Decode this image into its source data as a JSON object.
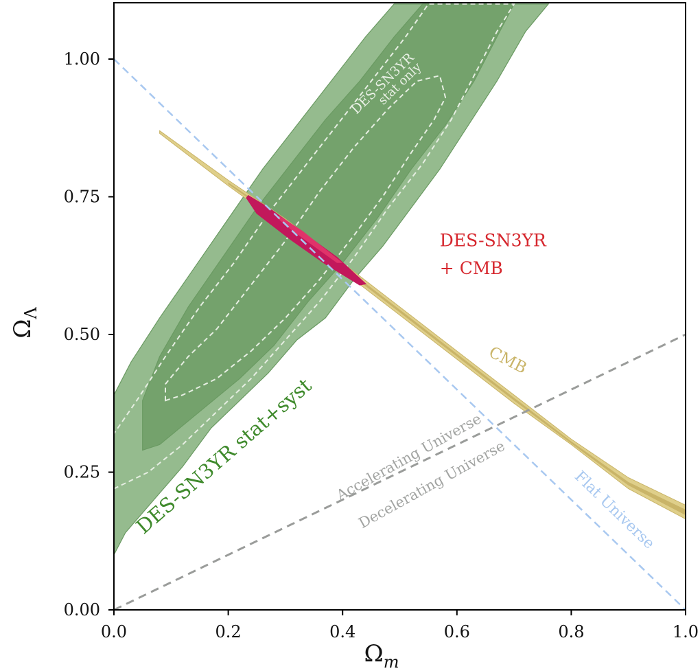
{
  "chart_data": {
    "type": "contour",
    "xlabel": "Ω",
    "xlabel_sub": "m",
    "ylabel": "Ω",
    "ylabel_sub": "Λ",
    "xlim": [
      0.0,
      1.0
    ],
    "ylim": [
      0.0,
      1.1
    ],
    "xticks": [
      0.0,
      0.2,
      0.4,
      0.6,
      0.8,
      1.0
    ],
    "xtick_labels": [
      "0.0",
      "0.2",
      "0.4",
      "0.6",
      "0.8",
      "1.0"
    ],
    "yticks": [
      0.0,
      0.25,
      0.5,
      0.75,
      1.0
    ],
    "ytick_labels": [
      "0.00",
      "0.25",
      "0.50",
      "0.75",
      "1.00"
    ],
    "grid": false,
    "colors": {
      "sn_outer": "#95bb8e",
      "sn_inner": "#74a26c",
      "sn_outline": "#6a9a62",
      "stat_only": "#e6eee2",
      "cmb_outer": "#dfcf8a",
      "cmb_inner": "#c9b468",
      "combined_outer": "#c2185b",
      "combined_inner": "#e0336a",
      "flat_line": "#a8c8f0",
      "accel_line": "#9a9c9a",
      "sn_label": "#3f8a2c",
      "stat_label": "#e8efe4",
      "combined_label": "#d6272e",
      "cmb_label": "#c9b468",
      "accel_label": "#a2a4a2",
      "flat_label": "#a8c8f0"
    },
    "series": [
      {
        "name": "DES-SN3YR stat+syst",
        "kind": "filled-contour",
        "level": "outer",
        "points": [
          [
            0.0,
            0.1
          ],
          [
            0.02,
            0.14
          ],
          [
            0.07,
            0.2
          ],
          [
            0.12,
            0.26
          ],
          [
            0.17,
            0.33
          ],
          [
            0.22,
            0.38
          ],
          [
            0.27,
            0.43
          ],
          [
            0.32,
            0.49
          ],
          [
            0.37,
            0.53
          ],
          [
            0.42,
            0.6
          ],
          [
            0.47,
            0.66
          ],
          [
            0.52,
            0.73
          ],
          [
            0.57,
            0.8
          ],
          [
            0.62,
            0.88
          ],
          [
            0.67,
            0.96
          ],
          [
            0.72,
            1.05
          ],
          [
            0.76,
            1.1
          ],
          [
            0.49,
            1.1
          ],
          [
            0.44,
            1.04
          ],
          [
            0.38,
            0.96
          ],
          [
            0.32,
            0.88
          ],
          [
            0.26,
            0.8
          ],
          [
            0.2,
            0.71
          ],
          [
            0.14,
            0.62
          ],
          [
            0.08,
            0.53
          ],
          [
            0.03,
            0.45
          ],
          [
            0.0,
            0.39
          ]
        ]
      },
      {
        "name": "DES-SN3YR stat+syst",
        "kind": "filled-contour",
        "level": "inner",
        "points": [
          [
            0.05,
            0.29
          ],
          [
            0.08,
            0.3
          ],
          [
            0.15,
            0.36
          ],
          [
            0.22,
            0.42
          ],
          [
            0.28,
            0.48
          ],
          [
            0.34,
            0.56
          ],
          [
            0.4,
            0.63
          ],
          [
            0.46,
            0.71
          ],
          [
            0.52,
            0.8
          ],
          [
            0.58,
            0.88
          ],
          [
            0.63,
            0.96
          ],
          [
            0.67,
            1.04
          ],
          [
            0.7,
            1.1
          ],
          [
            0.54,
            1.1
          ],
          [
            0.49,
            1.04
          ],
          [
            0.43,
            0.96
          ],
          [
            0.37,
            0.89
          ],
          [
            0.31,
            0.81
          ],
          [
            0.25,
            0.73
          ],
          [
            0.19,
            0.64
          ],
          [
            0.13,
            0.55
          ],
          [
            0.08,
            0.46
          ],
          [
            0.05,
            0.38
          ],
          [
            0.05,
            0.31
          ]
        ]
      },
      {
        "name": "DES-SN3YR stat only",
        "kind": "dashed-contour",
        "level": "outer",
        "points": [
          [
            0.0,
            0.22
          ],
          [
            0.06,
            0.25
          ],
          [
            0.12,
            0.3
          ],
          [
            0.18,
            0.36
          ],
          [
            0.24,
            0.42
          ],
          [
            0.3,
            0.49
          ],
          [
            0.36,
            0.56
          ],
          [
            0.42,
            0.64
          ],
          [
            0.48,
            0.73
          ],
          [
            0.54,
            0.81
          ],
          [
            0.59,
            0.89
          ],
          [
            0.63,
            0.97
          ],
          [
            0.67,
            1.05
          ],
          [
            0.7,
            1.1
          ],
          [
            0.55,
            1.1
          ],
          [
            0.51,
            1.04
          ],
          [
            0.45,
            0.96
          ],
          [
            0.39,
            0.88
          ],
          [
            0.33,
            0.8
          ],
          [
            0.27,
            0.72
          ],
          [
            0.21,
            0.63
          ],
          [
            0.15,
            0.55
          ],
          [
            0.09,
            0.46
          ],
          [
            0.04,
            0.38
          ],
          [
            0.0,
            0.32
          ]
        ]
      },
      {
        "name": "DES-SN3YR stat only",
        "kind": "dashed-contour",
        "level": "inner",
        "points": [
          [
            0.09,
            0.38
          ],
          [
            0.12,
            0.39
          ],
          [
            0.18,
            0.42
          ],
          [
            0.24,
            0.47
          ],
          [
            0.3,
            0.53
          ],
          [
            0.36,
            0.6
          ],
          [
            0.42,
            0.68
          ],
          [
            0.47,
            0.75
          ],
          [
            0.52,
            0.83
          ],
          [
            0.56,
            0.89
          ],
          [
            0.58,
            0.93
          ],
          [
            0.57,
            0.97
          ],
          [
            0.53,
            0.96
          ],
          [
            0.48,
            0.91
          ],
          [
            0.42,
            0.84
          ],
          [
            0.36,
            0.76
          ],
          [
            0.3,
            0.67
          ],
          [
            0.24,
            0.59
          ],
          [
            0.18,
            0.51
          ],
          [
            0.13,
            0.46
          ],
          [
            0.09,
            0.41
          ]
        ]
      },
      {
        "name": "CMB",
        "kind": "filled-band",
        "level": "outer",
        "points": [
          [
            0.08,
            0.87
          ],
          [
            0.2,
            0.78
          ],
          [
            0.3,
            0.71
          ],
          [
            0.4,
            0.63
          ],
          [
            0.5,
            0.55
          ],
          [
            0.6,
            0.47
          ],
          [
            0.7,
            0.39
          ],
          [
            0.8,
            0.31
          ],
          [
            0.9,
            0.24
          ],
          [
            1.0,
            0.19
          ],
          [
            1.0,
            0.165
          ],
          [
            0.9,
            0.22
          ],
          [
            0.8,
            0.3
          ],
          [
            0.7,
            0.375
          ],
          [
            0.6,
            0.455
          ],
          [
            0.5,
            0.535
          ],
          [
            0.4,
            0.615
          ],
          [
            0.3,
            0.695
          ],
          [
            0.2,
            0.77
          ],
          [
            0.08,
            0.865
          ]
        ]
      },
      {
        "name": "CMB",
        "kind": "filled-band",
        "level": "inner",
        "points": [
          [
            0.2,
            0.776
          ],
          [
            0.3,
            0.705
          ],
          [
            0.4,
            0.625
          ],
          [
            0.5,
            0.545
          ],
          [
            0.6,
            0.465
          ],
          [
            0.7,
            0.385
          ],
          [
            0.8,
            0.306
          ],
          [
            0.9,
            0.232
          ],
          [
            1.0,
            0.182
          ],
          [
            1.0,
            0.172
          ],
          [
            0.9,
            0.226
          ],
          [
            0.8,
            0.302
          ],
          [
            0.7,
            0.38
          ],
          [
            0.6,
            0.46
          ],
          [
            0.5,
            0.54
          ],
          [
            0.4,
            0.62
          ],
          [
            0.3,
            0.7
          ],
          [
            0.2,
            0.773
          ]
        ]
      },
      {
        "name": "DES-SN3YR + CMB",
        "kind": "filled-contour",
        "level": "outer",
        "points": [
          [
            0.235,
            0.752
          ],
          [
            0.27,
            0.73
          ],
          [
            0.33,
            0.685
          ],
          [
            0.39,
            0.64
          ],
          [
            0.44,
            0.592
          ],
          [
            0.43,
            0.59
          ],
          [
            0.37,
            0.628
          ],
          [
            0.31,
            0.672
          ],
          [
            0.25,
            0.72
          ],
          [
            0.232,
            0.748
          ]
        ]
      },
      {
        "name": "DES-SN3YR + CMB",
        "kind": "filled-contour",
        "level": "inner",
        "points": [
          [
            0.29,
            0.715
          ],
          [
            0.33,
            0.688
          ],
          [
            0.37,
            0.655
          ],
          [
            0.4,
            0.63
          ],
          [
            0.39,
            0.63
          ],
          [
            0.35,
            0.66
          ],
          [
            0.31,
            0.69
          ],
          [
            0.285,
            0.712
          ]
        ]
      },
      {
        "name": "Flat Universe",
        "kind": "reference-line",
        "points": [
          [
            0.0,
            1.0
          ],
          [
            1.0,
            0.0
          ]
        ]
      },
      {
        "name": "Accelerating / Decelerating boundary",
        "kind": "reference-line",
        "points": [
          [
            0.0,
            0.0
          ],
          [
            1.0,
            0.5
          ]
        ]
      }
    ],
    "annotations": [
      {
        "key": "sn",
        "text": "DES-SN3YR stat+syst",
        "x": 0.2,
        "y": 0.27,
        "rotation": -41,
        "size": 29,
        "color": "sn_label"
      },
      {
        "key": "stat1",
        "text": "DES-SN3YR",
        "x": 0.475,
        "y": 0.95,
        "rotation": -44,
        "size": 19,
        "color": "stat_label"
      },
      {
        "key": "stat2",
        "text": "stat only",
        "x": 0.505,
        "y": 0.95,
        "rotation": -44,
        "size": 18,
        "color": "stat_label"
      },
      {
        "key": "comb1",
        "text": "DES-SN3YR",
        "x": 0.57,
        "y": 0.66,
        "rotation": 0,
        "size": 25,
        "color": "combined_label",
        "anchor": "start"
      },
      {
        "key": "comb2",
        "text": "+ CMB",
        "x": 0.57,
        "y": 0.61,
        "rotation": 0,
        "size": 25,
        "color": "combined_label",
        "anchor": "start"
      },
      {
        "key": "cmb",
        "text": "CMB",
        "x": 0.685,
        "y": 0.445,
        "rotation": 27,
        "size": 23,
        "color": "cmb_label"
      },
      {
        "key": "accel",
        "text": "Accelerating Universe",
        "x": 0.52,
        "y": 0.27,
        "rotation": -29,
        "size": 21,
        "color": "accel_label"
      },
      {
        "key": "decel",
        "text": "Decelerating Universe",
        "x": 0.56,
        "y": 0.22,
        "rotation": -29,
        "size": 21,
        "color": "accel_label"
      },
      {
        "key": "flat",
        "text": "Flat Universe",
        "x": 0.87,
        "y": 0.175,
        "rotation": 44,
        "size": 22,
        "color": "flat_label"
      }
    ]
  }
}
